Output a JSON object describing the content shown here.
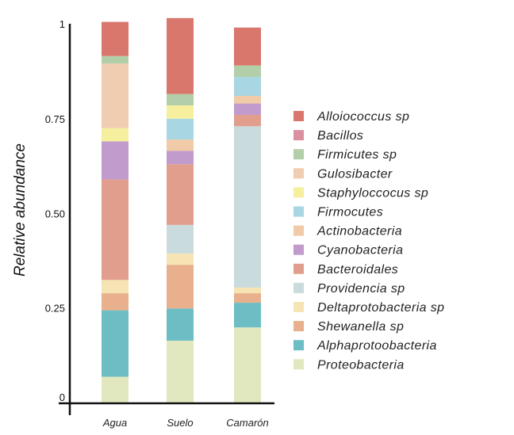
{
  "chart_data": {
    "type": "bar",
    "stacked": true,
    "title": "",
    "xlabel": "",
    "ylabel": "Relative abundance",
    "ylim": [
      0,
      1
    ],
    "yticks": [
      {
        "value": 0,
        "label": "0"
      },
      {
        "value": 0.25,
        "label": "0.25"
      },
      {
        "value": 0.5,
        "label": "0.50"
      },
      {
        "value": 0.75,
        "label": "0.75"
      },
      {
        "value": 1,
        "label": "1"
      }
    ],
    "categories": [
      "Agua",
      "Suelo",
      "Camarón"
    ],
    "legend_position": "right",
    "series": [
      {
        "name": "Proteobacteria",
        "color": "#e1e8bf",
        "values": [
          0.07,
          0.165,
          0.2
        ]
      },
      {
        "name": "Alphaprotoobacteria",
        "color": "#6dbdc4",
        "values": [
          0.175,
          0.085,
          0.065
        ]
      },
      {
        "name": "Shewanella sp",
        "color": "#e8b08c",
        "values": [
          0.045,
          0.115,
          0.025
        ]
      },
      {
        "name": "Deltaprotobacteria sp",
        "color": "#f6e4b4",
        "values": [
          0.035,
          0.03,
          0.015
        ]
      },
      {
        "name": "Providencia sp",
        "color": "#c9dbdc",
        "values": [
          0.0,
          0.075,
          0.425
        ]
      },
      {
        "name": "Bacteroidales",
        "color": "#e29e8c",
        "values": [
          0.265,
          0.16,
          0.03
        ]
      },
      {
        "name": "Cyanobacteria",
        "color": "#c09bcb",
        "values": [
          0.1,
          0.035,
          0.03
        ]
      },
      {
        "name": "Actinobacteria",
        "color": "#f1caa8",
        "values": [
          0.0,
          0.03,
          0.02
        ]
      },
      {
        "name": "Firmocutes",
        "color": "#a8d6e2",
        "values": [
          0.0,
          0.055,
          0.05
        ]
      },
      {
        "name": "Staphyloccocus sp",
        "color": "#f6ef9e",
        "values": [
          0.035,
          0.035,
          0.0
        ]
      },
      {
        "name": "Gulosibacter",
        "color": "#f0cdb0",
        "values": [
          0.17,
          0.0,
          0.0
        ]
      },
      {
        "name": "Firmicutes sp",
        "color": "#b2cfaa",
        "values": [
          0.02,
          0.03,
          0.03
        ]
      },
      {
        "name": "Bacillos",
        "color": "#dc8f9e",
        "values": [
          0.0,
          0.0,
          0.0
        ]
      },
      {
        "name": "Alloiococcus sp",
        "color": "#d9776c",
        "values": [
          0.09,
          0.2,
          0.1
        ]
      }
    ],
    "legend_order": [
      "Alloiococcus sp",
      "Bacillos",
      "Firmicutes sp",
      "Gulosibacter",
      "Staphyloccocus sp",
      "Firmocutes",
      "Actinobacteria",
      "Cyanobacteria",
      "Bacteroidales",
      "Providencia sp",
      "Deltaprotobacteria sp",
      "Shewanella sp",
      "Alphaprotoobacteria",
      "Proteobacteria"
    ]
  }
}
